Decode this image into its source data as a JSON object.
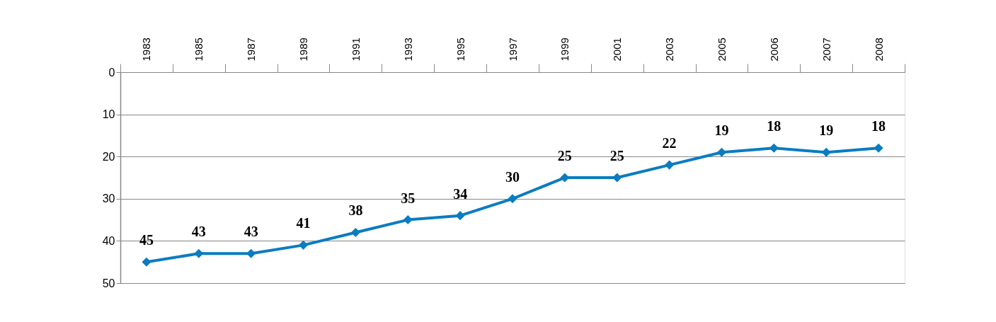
{
  "chart_data": {
    "type": "line",
    "categories": [
      "1983",
      "1985",
      "1987",
      "1989",
      "1991",
      "1993",
      "1995",
      "1997",
      "1999",
      "2001",
      "2003",
      "2005",
      "2006",
      "2007",
      "2008"
    ],
    "series": [
      {
        "color": "#0a7cc1",
        "values": [
          45,
          43,
          43,
          41,
          38,
          35,
          34,
          30,
          25,
          25,
          22,
          19,
          18,
          19,
          18
        ]
      }
    ],
    "ylim": [
      50,
      0
    ],
    "yticks": [
      0,
      10,
      20,
      30,
      40,
      50
    ],
    "grid": "y",
    "marker": "diamond",
    "line_style": "solid",
    "data_labels": true
  }
}
